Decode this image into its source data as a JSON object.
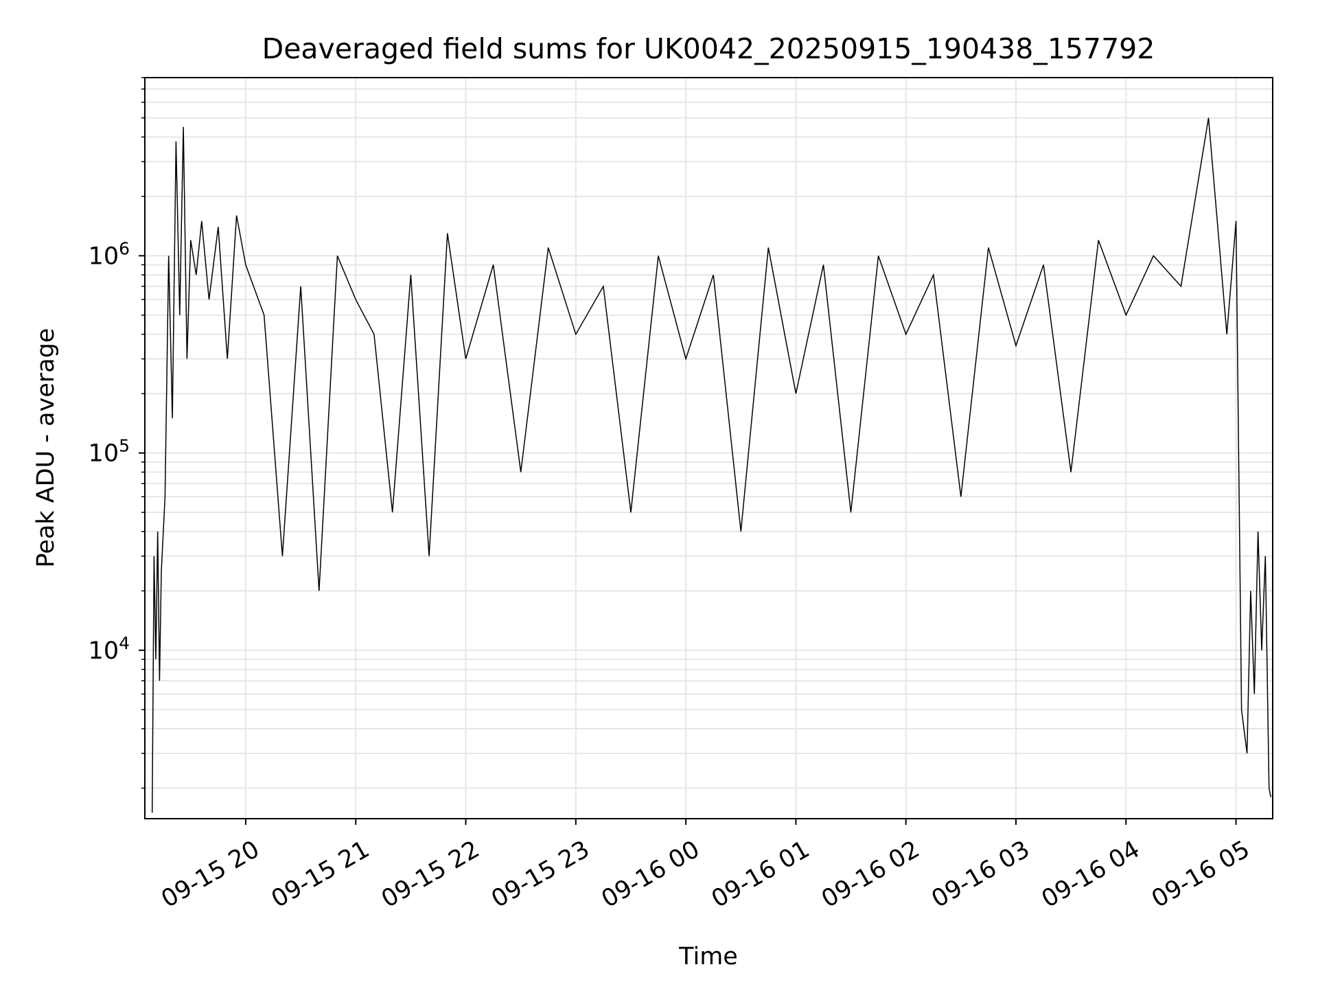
{
  "chart_data": {
    "type": "line",
    "title": "Deaveraged field sums for UK0042_20250915_190438_157792",
    "xlabel": "Time",
    "ylabel": "Peak ADU - average",
    "y_scale": "log",
    "ylim": [
      1400,
      8000000
    ],
    "xlim": [
      "2025-09-15 19:05",
      "2025-09-16 05:20"
    ],
    "x_ticks": [
      {
        "value": "2025-09-15 20:00",
        "label": "09-15 20"
      },
      {
        "value": "2025-09-15 21:00",
        "label": "09-15 21"
      },
      {
        "value": "2025-09-15 22:00",
        "label": "09-15 22"
      },
      {
        "value": "2025-09-15 23:00",
        "label": "09-15 23"
      },
      {
        "value": "2025-09-16 00:00",
        "label": "09-16 00"
      },
      {
        "value": "2025-09-16 01:00",
        "label": "09-16 01"
      },
      {
        "value": "2025-09-16 02:00",
        "label": "09-16 02"
      },
      {
        "value": "2025-09-16 03:00",
        "label": "09-16 03"
      },
      {
        "value": "2025-09-16 04:00",
        "label": "09-16 04"
      },
      {
        "value": "2025-09-16 05:00",
        "label": "09-16 05"
      }
    ],
    "y_ticks": [
      {
        "value": 10000,
        "base": "10",
        "exp": "4"
      },
      {
        "value": 100000,
        "base": "10",
        "exp": "5"
      },
      {
        "value": 1000000,
        "base": "10",
        "exp": "6"
      }
    ],
    "grid": true,
    "line_color": "#000000",
    "grid_color": "#e6e6e6",
    "series": [
      {
        "x": [
          "2025-09-15 19:09",
          "2025-09-15 19:10",
          "2025-09-15 19:11",
          "2025-09-15 19:12",
          "2025-09-15 19:13",
          "2025-09-15 19:14",
          "2025-09-15 19:16",
          "2025-09-15 19:18",
          "2025-09-15 19:20",
          "2025-09-15 19:22",
          "2025-09-15 19:24",
          "2025-09-15 19:26",
          "2025-09-15 19:28",
          "2025-09-15 19:30",
          "2025-09-15 19:33",
          "2025-09-15 19:36",
          "2025-09-15 19:40",
          "2025-09-15 19:45",
          "2025-09-15 19:50",
          "2025-09-15 19:55",
          "2025-09-15 20:00",
          "2025-09-15 20:10",
          "2025-09-15 20:20",
          "2025-09-15 20:30",
          "2025-09-15 20:40",
          "2025-09-15 20:50",
          "2025-09-15 21:00",
          "2025-09-15 21:10",
          "2025-09-15 21:20",
          "2025-09-15 21:30",
          "2025-09-15 21:40",
          "2025-09-15 21:50",
          "2025-09-15 22:00",
          "2025-09-15 22:15",
          "2025-09-15 22:30",
          "2025-09-15 22:45",
          "2025-09-15 23:00",
          "2025-09-15 23:15",
          "2025-09-15 23:30",
          "2025-09-15 23:45",
          "2025-09-16 00:00",
          "2025-09-16 00:15",
          "2025-09-16 00:30",
          "2025-09-16 00:45",
          "2025-09-16 01:00",
          "2025-09-16 01:15",
          "2025-09-16 01:30",
          "2025-09-16 01:45",
          "2025-09-16 02:00",
          "2025-09-16 02:15",
          "2025-09-16 02:30",
          "2025-09-16 02:45",
          "2025-09-16 03:00",
          "2025-09-16 03:15",
          "2025-09-16 03:30",
          "2025-09-16 03:45",
          "2025-09-16 04:00",
          "2025-09-16 04:15",
          "2025-09-16 04:30",
          "2025-09-16 04:45",
          "2025-09-16 04:55",
          "2025-09-16 05:00",
          "2025-09-16 05:03",
          "2025-09-16 05:06",
          "2025-09-16 05:08",
          "2025-09-16 05:10",
          "2025-09-16 05:12",
          "2025-09-16 05:14",
          "2025-09-16 05:16",
          "2025-09-16 05:18",
          "2025-09-16 05:19"
        ],
        "y": [
          1500,
          30000,
          9000,
          40000,
          7000,
          25000,
          60000,
          1000000,
          150000,
          3800000,
          500000,
          4500000,
          300000,
          1200000,
          800000,
          1500000,
          600000,
          1400000,
          300000,
          1600000,
          900000,
          500000,
          30000,
          700000,
          20000,
          1000000,
          600000,
          400000,
          50000,
          800000,
          30000,
          1300000,
          300000,
          900000,
          80000,
          1100000,
          400000,
          700000,
          50000,
          1000000,
          300000,
          800000,
          40000,
          1100000,
          200000,
          900000,
          50000,
          1000000,
          400000,
          800000,
          60000,
          1100000,
          350000,
          900000,
          80000,
          1200000,
          500000,
          1000000,
          700000,
          5000000,
          400000,
          1500000,
          5000,
          3000,
          20000,
          6000,
          40000,
          10000,
          30000,
          2000,
          1800
        ]
      }
    ]
  }
}
